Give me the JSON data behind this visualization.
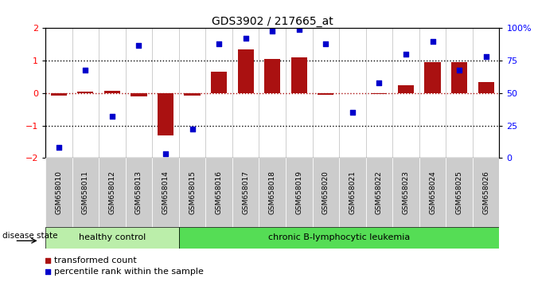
{
  "title": "GDS3902 / 217665_at",
  "samples": [
    "GSM658010",
    "GSM658011",
    "GSM658012",
    "GSM658013",
    "GSM658014",
    "GSM658015",
    "GSM658016",
    "GSM658017",
    "GSM658018",
    "GSM658019",
    "GSM658020",
    "GSM658021",
    "GSM658022",
    "GSM658023",
    "GSM658024",
    "GSM658025",
    "GSM658026"
  ],
  "bar_values": [
    -0.08,
    0.05,
    0.07,
    -0.1,
    -1.3,
    -0.07,
    0.65,
    1.35,
    1.05,
    1.1,
    -0.05,
    0.0,
    -0.03,
    0.25,
    0.95,
    0.95,
    0.35
  ],
  "dot_values": [
    8,
    68,
    32,
    87,
    3,
    22,
    88,
    92,
    98,
    99,
    88,
    35,
    58,
    80,
    90,
    68,
    78
  ],
  "healthy_count": 5,
  "disease_state_label": "disease state",
  "healthy_label": "healthy control",
  "leukemia_label": "chronic B-lymphocytic leukemia",
  "bar_color": "#AA1111",
  "dot_color": "#0000CC",
  "healthy_color": "#BBEEAA",
  "leukemia_color": "#55DD55",
  "bg_color": "#FFFFFF",
  "label_bg_color": "#CCCCCC",
  "ylim": [
    -2,
    2
  ],
  "yticks_left": [
    -2,
    -1,
    0,
    1,
    2
  ],
  "yticks_right": [
    0,
    25,
    50,
    75,
    100
  ],
  "legend_bar": "transformed count",
  "legend_dot": "percentile rank within the sample"
}
